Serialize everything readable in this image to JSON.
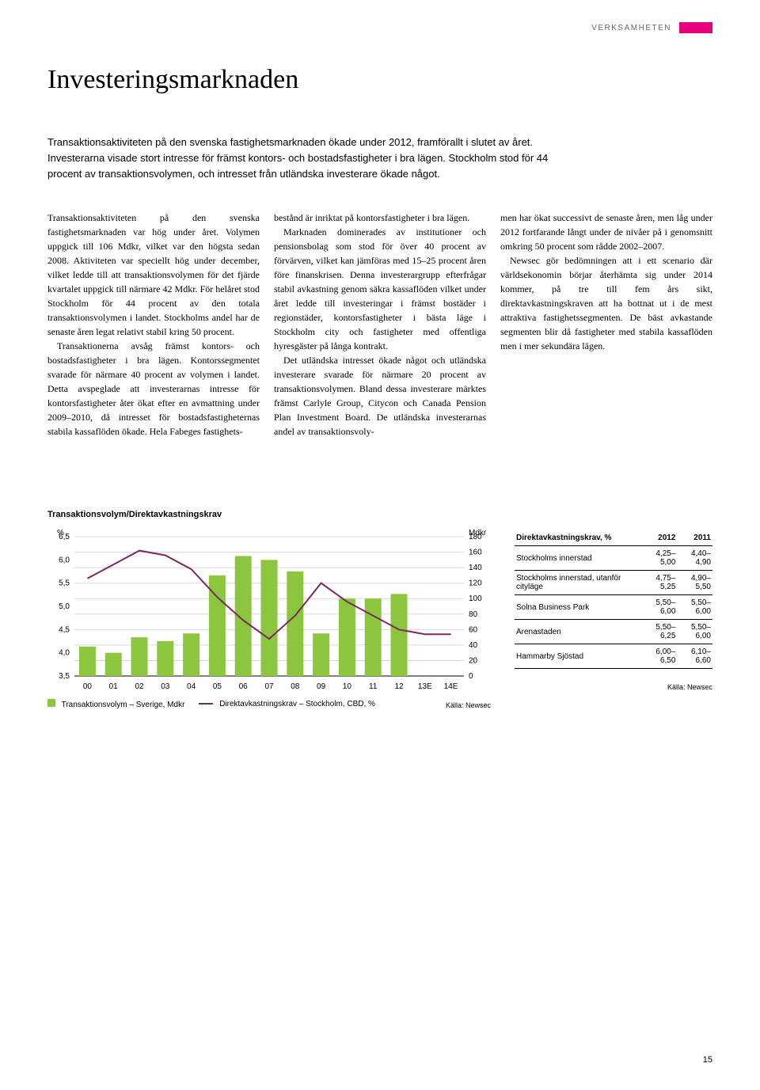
{
  "header": {
    "label": "VERKSAMHETEN"
  },
  "title": "Investeringsmarknaden",
  "intro": "Transaktionsaktiviteten på den svenska fastighetsmarknaden ökade under 2012, framförallt i slutet av året. Investerarna visade stort intresse för främst kontors- och bostadsfastigheter i bra lägen. Stockholm stod för 44 procent av transaktionsvolymen, och intresset från utländska investerare ökade något.",
  "body": {
    "col1": [
      "Transaktionsaktiviteten på den svenska fastighetsmarknaden var hög under året. Volymen uppgick till 106 Mdkr, vilket var den högsta sedan 2008. Aktiviteten var speciellt hög under december, vilket ledde till att transaktionsvolymen för det fjärde kvartalet uppgick till närmare 42 Mdkr. För helåret stod Stockholm för 44 procent av den totala transaktionsvolymen i landet. Stockholms andel har de senaste åren legat relativt stabil kring 50 procent.",
      "Transaktionerna avsåg främst kontors- och bostadsfastigheter i bra lägen. Kontorssegmentet svarade för närmare 40 procent av volymen i landet. Detta avspeglade att investerarnas intresse för kontorsfastigheter åter ökat efter en avmattning under 2009–2010, då intresset för bostadsfastigheternas stabila kassaflöden ökade. Hela Fabeges fastighets-"
    ],
    "col2": [
      "bestånd är inriktat på kontorsfastigheter i bra lägen.",
      "Marknaden dominerades av institutioner och pensionsbolag som stod för över 40 procent av förvärven, vilket kan jämföras med 15–25 procent åren före finanskrisen. Denna investerargrupp efterfrågar stabil avkastning genom säkra kassaflöden vilket under året ledde till investeringar i främst bostäder i regionstäder, kontorsfastigheter i bästa läge i Stockholm city och fastigheter med offentliga hyresgäster på långa kontrakt.",
      "Det utländska intresset ökade något och utländska investerare svarade för närmare 20 procent av transaktionsvolymen. Bland dessa investerare märktes främst Carlyle Group, Citycon och Canada Pension Plan Investment Board. De utländska investerarnas andel av transaktionsvoly-"
    ],
    "col3": [
      "men har ökat successivt de senaste åren, men låg under 2012 fortfarande långt under de nivåer på i genomsnitt omkring 50 procent som rådde 2002–2007.",
      "Newsec gör bedömningen att i ett scenario där världsekonomin börjar återhämta sig under 2014 kommer, på tre till fem års sikt, direktavkastningskraven att ha bottnat ut i de mest attraktiva fastighetssegmenten. De bäst avkastande segmenten blir då fastigheter med stabila kassaflöden men i mer sekundära lägen."
    ]
  },
  "chart": {
    "title": "Transaktionsvolym/Direktavkastningskrav",
    "left_axis": {
      "label": "%",
      "min": 3.5,
      "max": 6.5,
      "step": 0.5,
      "ticks": [
        "6,5",
        "6,0",
        "5,5",
        "5,0",
        "4,5",
        "4,0",
        "3,5"
      ]
    },
    "right_axis": {
      "label": "Mdkr",
      "min": 0,
      "max": 180,
      "step": 20,
      "ticks": [
        "180",
        "160",
        "140",
        "120",
        "100",
        "80",
        "60",
        "40",
        "20",
        "0"
      ]
    },
    "x_labels": [
      "00",
      "01",
      "02",
      "03",
      "04",
      "05",
      "06",
      "07",
      "08",
      "09",
      "10",
      "11",
      "12",
      "13E",
      "14E"
    ],
    "bars": [
      38,
      30,
      50,
      45,
      55,
      130,
      155,
      150,
      135,
      55,
      100,
      100,
      106,
      null,
      null
    ],
    "bar_color": "#8cc63f",
    "line": [
      5.6,
      5.9,
      6.2,
      6.1,
      5.8,
      5.2,
      4.7,
      4.3,
      4.8,
      5.5,
      5.1,
      4.8,
      4.5,
      4.4,
      4.4
    ],
    "line_color": "#7a2b5e",
    "grid_color": "#d9d9d9",
    "legend": [
      {
        "swatch": "#8cc63f",
        "text": "Transaktionsvolym – Sverige, Mdkr"
      },
      {
        "line": "#7a2b5e",
        "text": "Direktavkastningskrav – Stockholm, CBD, %"
      }
    ],
    "source": "Källa: Newsec"
  },
  "table": {
    "header": [
      "Direktavkastningskrav, %",
      "2012",
      "2011"
    ],
    "rows": [
      [
        "Stockholms innerstad",
        "4,25–5,00",
        "4,40–4,90"
      ],
      [
        "Stockholms innerstad, utanför cityläge",
        "4,75–5,25",
        "4,90–5,50"
      ],
      [
        "Solna Business Park",
        "5,50–6,00",
        "5,50–6,00"
      ],
      [
        "Arenastaden",
        "5,50–6,25",
        "5,50–6,00"
      ],
      [
        "Hammarby Sjöstad",
        "6,00–6,50",
        "6,10–6,60"
      ]
    ],
    "source": "Källa: Newsec"
  },
  "page_number": "15"
}
